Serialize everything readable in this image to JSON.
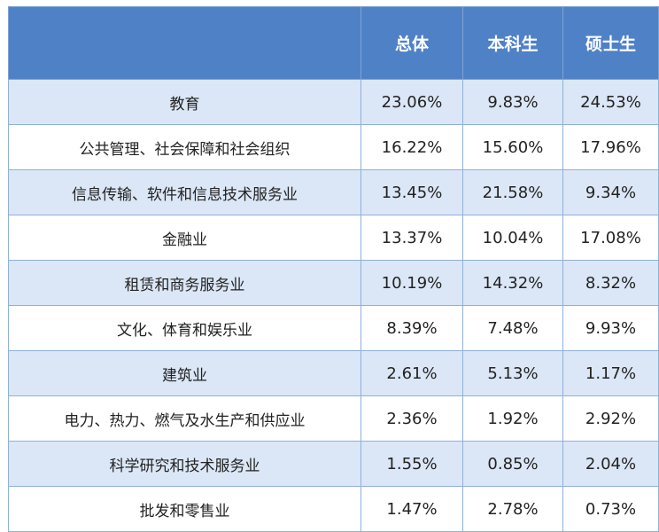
{
  "chart_data": {
    "type": "table",
    "columns": [
      "",
      "总体",
      "本科生",
      "硕士生"
    ],
    "rows": [
      {
        "label": "教育",
        "values": [
          "23.06%",
          "9.83%",
          "24.53%"
        ]
      },
      {
        "label": "公共管理、社会保障和社会组织",
        "values": [
          "16.22%",
          "15.60%",
          "17.96%"
        ]
      },
      {
        "label": "信息传输、软件和信息技术服务业",
        "values": [
          "13.45%",
          "21.58%",
          "9.34%"
        ]
      },
      {
        "label": "金融业",
        "values": [
          "13.37%",
          "10.04%",
          "17.08%"
        ]
      },
      {
        "label": "租赁和商务服务业",
        "values": [
          "10.19%",
          "14.32%",
          "8.32%"
        ]
      },
      {
        "label": "文化、体育和娱乐业",
        "values": [
          "8.39%",
          "7.48%",
          "9.93%"
        ]
      },
      {
        "label": "建筑业",
        "values": [
          "2.61%",
          "5.13%",
          "1.17%"
        ]
      },
      {
        "label": "电力、热力、燃气及水生产和供应业",
        "values": [
          "2.36%",
          "1.92%",
          "2.92%"
        ]
      },
      {
        "label": "科学研究和技术服务业",
        "values": [
          "1.55%",
          "0.85%",
          "2.04%"
        ]
      },
      {
        "label": "批发和零售业",
        "values": [
          "1.47%",
          "2.78%",
          "0.73%"
        ]
      }
    ],
    "colors": {
      "header": "#4f81c7",
      "stripe": "#dbe7f6",
      "border": "#8fb0da"
    }
  }
}
